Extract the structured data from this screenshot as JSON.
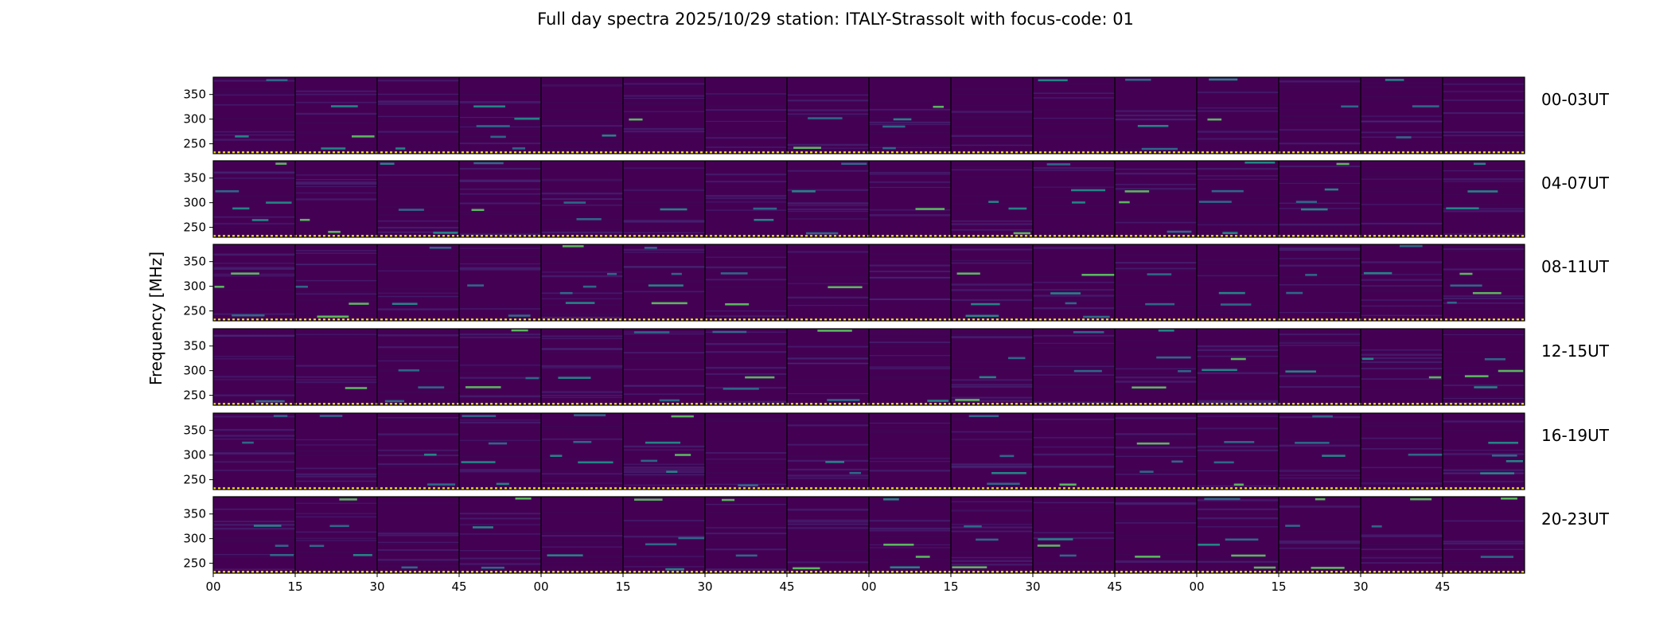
{
  "chart_data": {
    "type": "heatmap",
    "title": "Full day spectra 2025/10/29 station: ITALY-Strassolt with focus-code: 01",
    "xlabel": "",
    "ylabel": "Frequency [MHz]",
    "colormap": "viridis",
    "ylim": [
      230,
      385
    ],
    "yticks": [
      250,
      300,
      350
    ],
    "ytick_labels": [
      "250",
      "300",
      "350"
    ],
    "x_tick_labels": [
      "00",
      "15",
      "30",
      "45",
      "00",
      "15",
      "30",
      "45",
      "00",
      "15",
      "30",
      "45",
      "00",
      "15",
      "30",
      "45"
    ],
    "segments_per_row": 16,
    "segment_minutes": 15,
    "rows": [
      {
        "label": "00-03UT"
      },
      {
        "label": "04-07UT"
      },
      {
        "label": "08-11UT"
      },
      {
        "label": "12-15UT"
      },
      {
        "label": "16-19UT"
      },
      {
        "label": "20-23UT"
      }
    ],
    "baseline_frequency_mhz": 232,
    "emission_lines_mhz": [
      240,
      265,
      287,
      300,
      325,
      380
    ]
  },
  "colors": {
    "background": "#440154",
    "noise_dark": "#3e0753",
    "noise_mid": "#472d7b",
    "line_teal": "#2c728e",
    "line_bright": "#21918c",
    "line_cyan": "#5ec962",
    "band_yellow": "#fde725",
    "border": "#000000"
  }
}
